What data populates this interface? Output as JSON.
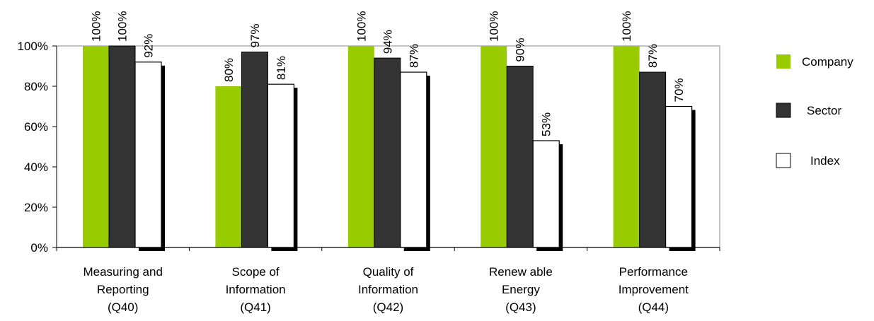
{
  "chart_data": {
    "type": "bar",
    "categories": [
      [
        "Measuring and",
        "Reporting",
        "(Q40)"
      ],
      [
        "Scope of",
        "Information",
        "(Q41)"
      ],
      [
        "Quality of",
        "Information",
        "(Q42)"
      ],
      [
        "Renew able",
        "Energy",
        "(Q43)"
      ],
      [
        "Performance",
        "Improvement",
        "(Q44)"
      ]
    ],
    "series": [
      {
        "name": "Company",
        "values": [
          100,
          80,
          100,
          100,
          100
        ],
        "color": "#99cc00"
      },
      {
        "name": "Sector",
        "values": [
          100,
          97,
          94,
          90,
          87
        ],
        "color": "#333333"
      },
      {
        "name": "Index",
        "values": [
          92,
          81,
          87,
          53,
          70
        ],
        "color": "#ffffff"
      }
    ],
    "data_labels": [
      [
        "100%",
        "80%",
        "100%",
        "100%",
        "100%"
      ],
      [
        "100%",
        "97%",
        "94%",
        "90%",
        "87%"
      ],
      [
        "92%",
        "81%",
        "87%",
        "53%",
        "70%"
      ]
    ],
    "ylim": [
      0,
      100
    ],
    "yticks": [
      0,
      20,
      40,
      60,
      80,
      100
    ],
    "ytick_labels": [
      "0%",
      "20%",
      "40%",
      "60%",
      "80%",
      "100%"
    ],
    "legend_position": "right",
    "grid": false
  }
}
